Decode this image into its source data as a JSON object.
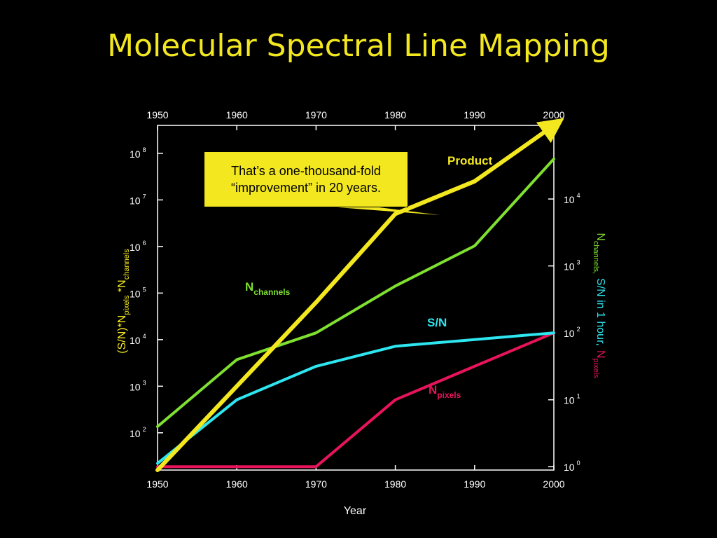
{
  "title": "Molecular Spectral Line Mapping",
  "colors": {
    "title": "#f3e81f",
    "product": "#f3e81f",
    "n_channels": "#7fe030",
    "s_n": "#2ee6f0",
    "n_pixels": "#e8145a",
    "axes": "#ffffff"
  },
  "callout": {
    "line1": "That’s a one-thousand-fold",
    "line2": "“improvement” in 20 years."
  },
  "chart_data": {
    "type": "line",
    "x_ticks": [
      "1950",
      "1960",
      "1970",
      "1980",
      "1990",
      "2000"
    ],
    "xlabel": "Year",
    "xlim": [
      1950,
      2000
    ],
    "left_axis": {
      "scale": "log",
      "ylim_exponent": [
        1.2,
        8.6
      ],
      "tick_exponents": [
        "2",
        "3",
        "4",
        "5",
        "6",
        "7",
        "8"
      ],
      "tick_base": "10",
      "label": {
        "main": "(S/N)*N",
        "sub1": "pixels",
        "mid": " *N",
        "sub2": "channels"
      }
    },
    "right_axis": {
      "scale": "log",
      "ylim_exponent": [
        -0.05,
        5.1
      ],
      "tick_exponents": [
        "0",
        "1",
        "2",
        "3",
        "4"
      ],
      "tick_base": "10",
      "label": {
        "n1": "N",
        "n1_sub": "channels,",
        "sn": "S/N in 1 hour,",
        "n2": "N",
        "n2_sub": "pixels"
      }
    },
    "series": [
      {
        "name": "Product",
        "axis": "left",
        "color": "#f3e81f",
        "x": [
          1950,
          1960,
          1970,
          1980,
          1990,
          2000
        ],
        "y_exponent": [
          1.2,
          3.0,
          4.8,
          6.7,
          7.4,
          8.6
        ]
      },
      {
        "name": "N",
        "name_sub": "channels",
        "axis": "right",
        "color": "#7fe030",
        "x": [
          1950,
          1960,
          1970,
          1980,
          1990,
          2000
        ],
        "y_exponent": [
          0.6,
          1.6,
          2.0,
          2.7,
          3.3,
          4.6
        ]
      },
      {
        "name": "S/N",
        "axis": "right",
        "color": "#2ee6f0",
        "x": [
          1950,
          1960,
          1970,
          1980,
          1990,
          2000
        ],
        "y_exponent": [
          0.05,
          1.0,
          1.5,
          1.8,
          1.9,
          2.0
        ]
      },
      {
        "name": "N",
        "name_sub": "pixels",
        "axis": "right",
        "color": "#e8145a",
        "x": [
          1950,
          1960,
          1970,
          1980,
          1990,
          2000
        ],
        "y_exponent": [
          0.0,
          0.0,
          0.0,
          1.0,
          1.5,
          2.0
        ]
      }
    ]
  }
}
